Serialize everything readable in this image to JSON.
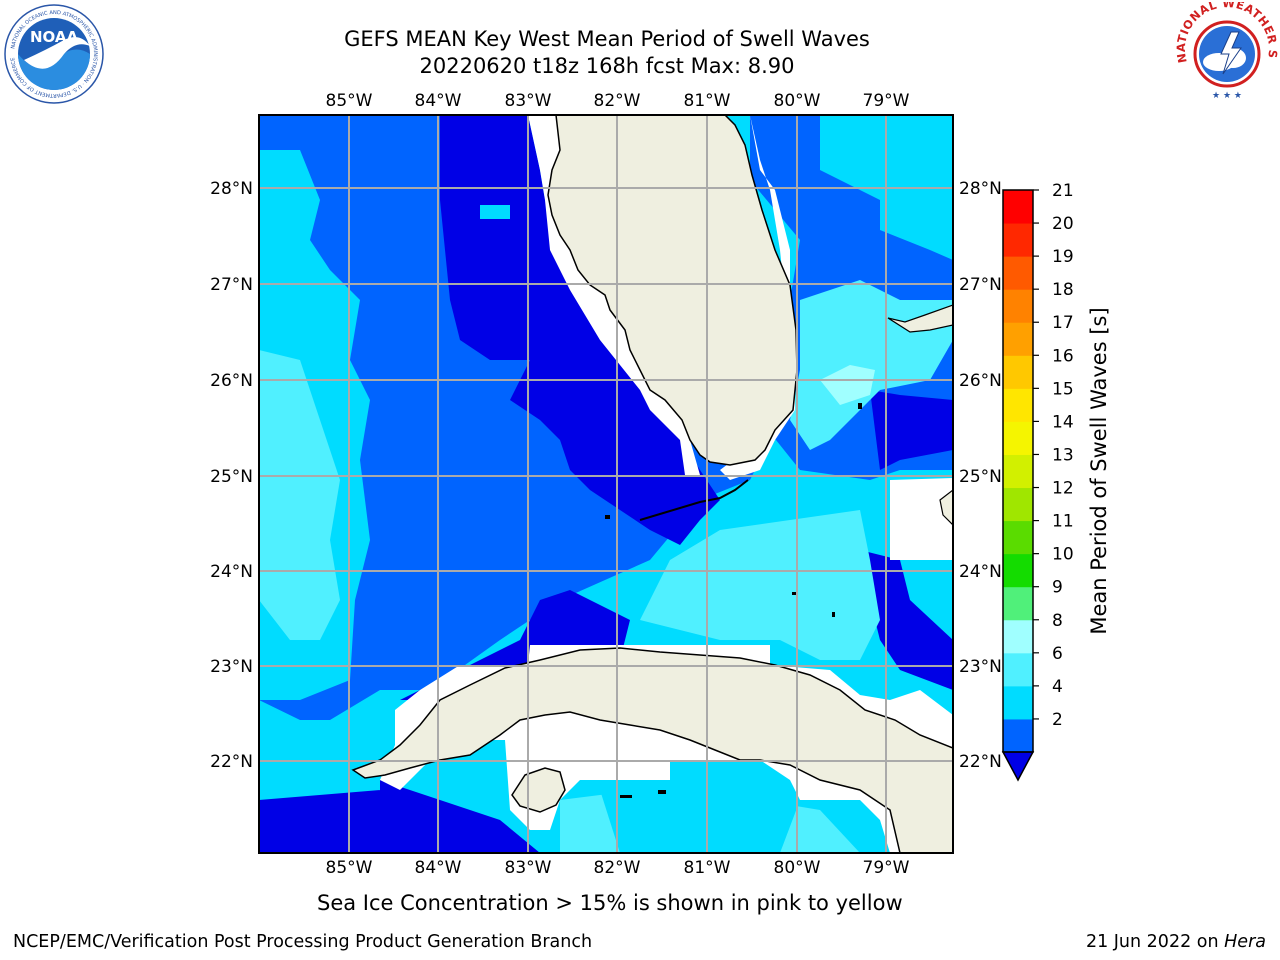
{
  "header": {
    "title_line1": "GEFS MEAN Key West Mean Period of Swell Waves",
    "title_line2": "20220620 t18z 168h fcst   Max: 8.90"
  },
  "map": {
    "lon_labels": [
      "85°W",
      "84°W",
      "83°W",
      "82°W",
      "81°W",
      "80°W",
      "79°W"
    ],
    "lat_labels": [
      "28°N",
      "27°N",
      "26°N",
      "25°N",
      "24°N",
      "23°N",
      "22°N"
    ],
    "lon_range": [
      -86,
      -78.3
    ],
    "lat_range": [
      21.05,
      28.75
    ]
  },
  "colorbar": {
    "label": "Mean Period of Swell Waves [s]",
    "ticks": [
      "21",
      "20",
      "19",
      "18",
      "17",
      "16",
      "15",
      "14",
      "13",
      "12",
      "11",
      "10",
      "9",
      "8",
      "6",
      "4",
      "2"
    ],
    "levels": [
      2,
      4,
      6,
      8,
      9,
      10,
      11,
      12,
      13,
      14,
      15,
      16,
      17,
      18,
      19,
      20,
      21
    ],
    "colors": [
      "#0064ff",
      "#00dcff",
      "#50f0ff",
      "#a0ffff",
      "#50f07a",
      "#14dc00",
      "#5adc00",
      "#a0e600",
      "#d2f000",
      "#f5f500",
      "#ffe600",
      "#ffc800",
      "#ffa000",
      "#ff8200",
      "#ff5a00",
      "#ff2800",
      "#ff0000"
    ],
    "extend_color": "#0000e6"
  },
  "caption": "Sea Ice Concentration > 15% is shown in pink to yellow",
  "footer": {
    "left": "NCEP/EMC/Verification Post Processing Product Generation Branch",
    "right_prefix": "21 Jun 2022 on ",
    "right_host": "Hera"
  },
  "logos": {
    "left_name": "NOAA",
    "right_text": "NATIONAL WEATHER SERVICE"
  }
}
